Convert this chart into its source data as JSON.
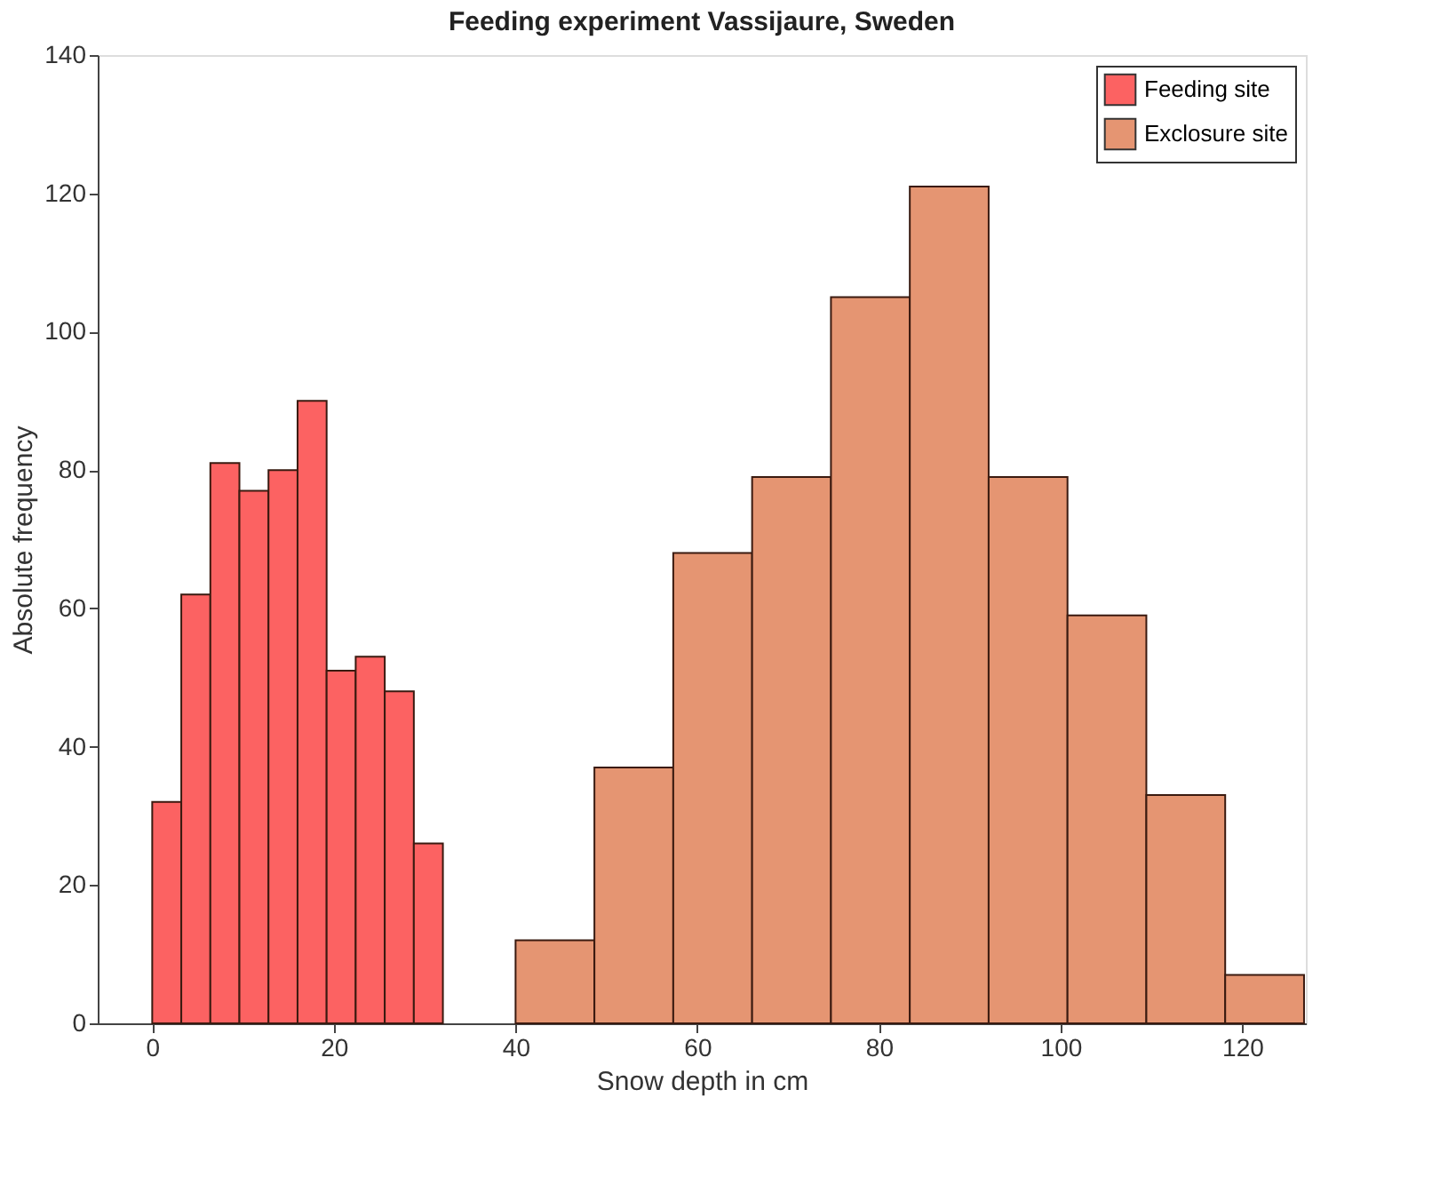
{
  "chart_data": {
    "type": "bar",
    "title": "Feeding experiment Vassijaure, Sweden",
    "xlabel": "Snow depth in cm",
    "ylabel": "Absolute frequency",
    "series": [
      {
        "name": "Feeding site",
        "color": "#fc6262",
        "x": [
          1.6,
          4.8,
          8.0,
          11.2,
          14.4,
          17.6,
          20.8,
          24.0,
          27.2,
          30.4
        ],
        "values": [
          32,
          62,
          81,
          77,
          80,
          90,
          51,
          53,
          48,
          26
        ]
      },
      {
        "name": "Exclosure site",
        "color": "#e59572",
        "x": [
          44.34,
          53.02,
          61.7,
          70.38,
          79.06,
          87.74,
          96.42,
          105.1,
          113.78,
          122.46
        ],
        "values": [
          12,
          37,
          68,
          79,
          105,
          121,
          79,
          59,
          33,
          7
        ]
      }
    ],
    "xlim": [
      -6,
      127
    ],
    "xticks": [
      0,
      20,
      40,
      60,
      80,
      100,
      120
    ],
    "ylim": [
      0,
      140
    ],
    "yticks": [
      0,
      20,
      40,
      60,
      80,
      100,
      120,
      140
    ],
    "legend": "top right"
  }
}
